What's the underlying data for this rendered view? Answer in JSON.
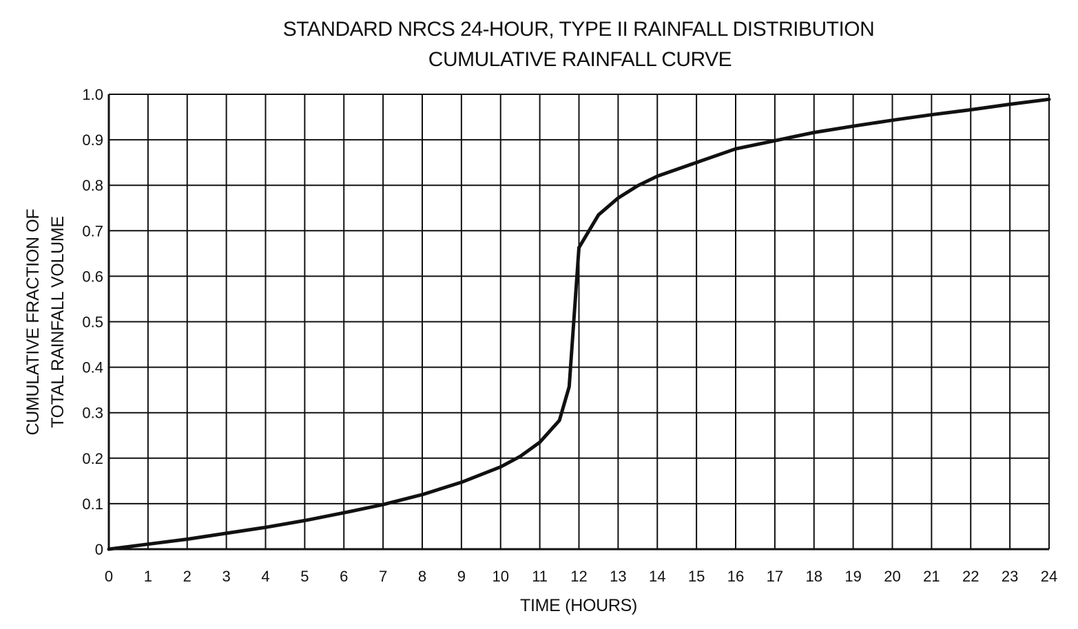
{
  "chart_data": {
    "type": "line",
    "title": "STANDARD NRCS 24-HOUR, TYPE II RAINFALL DISTRIBUTION",
    "subtitle": "CUMULATIVE RAINFALL CURVE",
    "xlabel": "TIME (HOURS)",
    "ylabel_line1": "CUMULATIVE FRACTION OF",
    "ylabel_line2": "TOTAL RAINFALL VOLUME",
    "xlim": [
      0,
      24
    ],
    "ylim": [
      0,
      1.0
    ],
    "grid": true,
    "x_ticks": [
      "0",
      "1",
      "2",
      "3",
      "4",
      "5",
      "6",
      "7",
      "8",
      "9",
      "10",
      "11",
      "12",
      "13",
      "14",
      "15",
      "16",
      "17",
      "18",
      "19",
      "20",
      "21",
      "22",
      "23",
      "24"
    ],
    "y_ticks": [
      "0",
      "0.1",
      "0.2",
      "0.3",
      "0.4",
      "0.5",
      "0.6",
      "0.7",
      "0.8",
      "0.9",
      "1.0"
    ],
    "series": [
      {
        "x": [
          0,
          1,
          2,
          3,
          4,
          5,
          6,
          7,
          8,
          9,
          10,
          10.5,
          11,
          11.5,
          11.75,
          12,
          12.5,
          13,
          13.5,
          14,
          15,
          16,
          17,
          18,
          19,
          20,
          21,
          22,
          23,
          24
        ],
        "y": [
          0,
          0.011,
          0.022,
          0.035,
          0.048,
          0.063,
          0.08,
          0.098,
          0.12,
          0.147,
          0.181,
          0.204,
          0.235,
          0.283,
          0.357,
          0.663,
          0.735,
          0.772,
          0.799,
          0.82,
          0.85,
          0.88,
          0.898,
          0.916,
          0.93,
          0.943,
          0.955,
          0.966,
          0.978,
          0.989
        ]
      }
    ]
  }
}
